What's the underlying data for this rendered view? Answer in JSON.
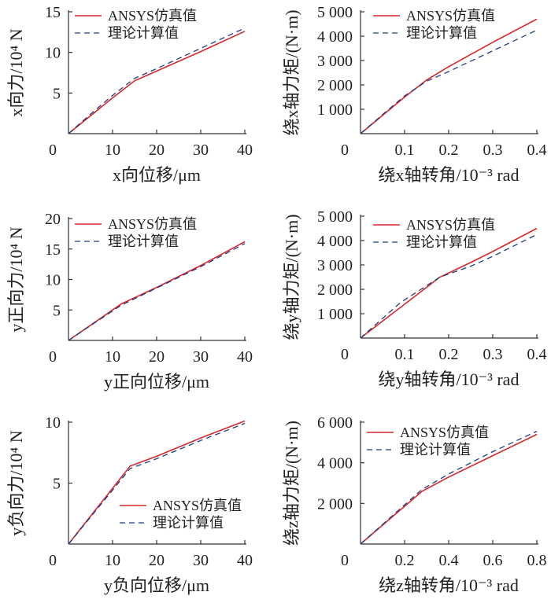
{
  "colors": {
    "sim": "#d62728",
    "theory": "#1f3c88",
    "axis": "#333333"
  },
  "chart_data": [
    {
      "type": "line",
      "xlabel": "x向位移/μm",
      "ylabel": "x向力/10⁴ N",
      "xlim": [
        0,
        40
      ],
      "ylim": [
        0,
        15
      ],
      "xticks": [
        0,
        10,
        20,
        30,
        40
      ],
      "xtick_labels": [
        "0",
        "10",
        "20",
        "30",
        "40"
      ],
      "yticks": [
        5,
        10,
        15
      ],
      "ytick_labels": [
        "5",
        "10",
        "15"
      ],
      "legend": "top-left",
      "series": [
        {
          "name": "ANSYS仿真值",
          "style": "solid",
          "x": [
            0,
            5,
            10,
            15,
            20,
            30,
            40
          ],
          "y": [
            0,
            2.2,
            4.4,
            6.5,
            7.7,
            10.1,
            12.6
          ]
        },
        {
          "name": "理论计算值",
          "style": "dashed",
          "x": [
            0,
            5,
            10,
            15,
            20,
            30,
            40
          ],
          "y": [
            0,
            2.4,
            4.7,
            6.8,
            8.0,
            10.5,
            13.0
          ]
        }
      ]
    },
    {
      "type": "line",
      "xlabel": "绕x轴转角/10⁻³ rad",
      "ylabel": "绕x轴力矩/(N·m)",
      "xlim": [
        0,
        0.4
      ],
      "ylim": [
        0,
        5000
      ],
      "xticks": [
        0,
        0.1,
        0.2,
        0.3,
        0.4
      ],
      "xtick_labels": [
        "0",
        "0.1",
        "0.2",
        "0.3",
        "0.4"
      ],
      "yticks": [
        1000,
        2000,
        3000,
        4000,
        5000
      ],
      "ytick_labels": [
        "1 000",
        "2 000",
        "3 000",
        "4 000",
        "5 000"
      ],
      "legend": "top-left",
      "series": [
        {
          "name": "ANSYS仿真值",
          "style": "solid",
          "x": [
            0,
            0.05,
            0.1,
            0.15,
            0.2,
            0.3,
            0.4
          ],
          "y": [
            0,
            750,
            1500,
            2200,
            2750,
            3750,
            4700
          ]
        },
        {
          "name": "理论计算值",
          "style": "dashed",
          "x": [
            0,
            0.05,
            0.1,
            0.15,
            0.2,
            0.3,
            0.4
          ],
          "y": [
            0,
            780,
            1550,
            2150,
            2550,
            3400,
            4250
          ]
        }
      ]
    },
    {
      "type": "line",
      "xlabel": "y正向位移/μm",
      "ylabel": "y正向力/10⁴ N",
      "xlim": [
        0,
        40
      ],
      "ylim": [
        0,
        20
      ],
      "xticks": [
        0,
        10,
        20,
        30,
        40
      ],
      "xtick_labels": [
        "0",
        "10",
        "20",
        "30",
        "40"
      ],
      "yticks": [
        5,
        10,
        15,
        20
      ],
      "ytick_labels": [
        "5",
        "10",
        "15",
        "20"
      ],
      "legend": "top-left",
      "series": [
        {
          "name": "ANSYS仿真值",
          "style": "solid",
          "x": [
            0,
            6,
            12,
            20,
            30,
            40
          ],
          "y": [
            0,
            3.0,
            6.0,
            8.7,
            12.3,
            16.2
          ]
        },
        {
          "name": "理论计算值",
          "style": "dashed",
          "x": [
            0,
            6,
            12,
            20,
            30,
            40
          ],
          "y": [
            0,
            2.9,
            5.8,
            8.6,
            12.1,
            15.9
          ]
        }
      ]
    },
    {
      "type": "line",
      "xlabel": "绕y轴转角/10⁻³ rad",
      "ylabel": "绕y轴力矩/(N·m)",
      "xlim": [
        0,
        0.4
      ],
      "ylim": [
        0,
        5000
      ],
      "xticks": [
        0,
        0.1,
        0.2,
        0.3,
        0.4
      ],
      "xtick_labels": [
        "0",
        "0.1",
        "0.2",
        "0.3",
        "0.4"
      ],
      "yticks": [
        1000,
        2000,
        3000,
        4000,
        5000
      ],
      "ytick_labels": [
        "1 000",
        "2 000",
        "3 000",
        "4 000",
        "5 000"
      ],
      "legend": "top-left",
      "series": [
        {
          "name": "ANSYS仿真值",
          "style": "solid",
          "x": [
            0,
            0.09,
            0.18,
            0.25,
            0.3,
            0.4
          ],
          "y": [
            0,
            1250,
            2500,
            3100,
            3550,
            4500
          ]
        },
        {
          "name": "理论计算值",
          "style": "dashed",
          "x": [
            0,
            0.09,
            0.18,
            0.25,
            0.3,
            0.4
          ],
          "y": [
            0,
            1450,
            2500,
            2950,
            3350,
            4250
          ]
        }
      ]
    },
    {
      "type": "line",
      "xlabel": "y负向位移/μm",
      "ylabel": "y负向力/10⁴ N",
      "xlim": [
        0,
        40
      ],
      "ylim": [
        0,
        10
      ],
      "xticks": [
        0,
        10,
        20,
        30,
        40
      ],
      "xtick_labels": [
        "0",
        "10",
        "20",
        "30",
        "40"
      ],
      "yticks": [
        5,
        10
      ],
      "ytick_labels": [
        "5",
        "10"
      ],
      "legend": "bottom-right",
      "series": [
        {
          "name": "ANSYS仿真值",
          "style": "solid",
          "x": [
            0,
            7,
            14,
            20,
            30,
            40
          ],
          "y": [
            0,
            3.2,
            6.4,
            7.2,
            8.7,
            10.1
          ]
        },
        {
          "name": "理论计算值",
          "style": "dashed",
          "x": [
            0,
            7,
            14,
            20,
            30,
            40
          ],
          "y": [
            0,
            3.1,
            6.2,
            7.0,
            8.5,
            9.9
          ]
        }
      ]
    },
    {
      "type": "line",
      "xlabel": "绕z轴转角/10⁻³ rad",
      "ylabel": "绕z轴力矩/(N·m)",
      "xlim": [
        0,
        0.8
      ],
      "ylim": [
        0,
        6000
      ],
      "xticks": [
        0,
        0.2,
        0.4,
        0.6,
        0.8
      ],
      "xtick_labels": [
        "0",
        "0.2",
        "0.4",
        "0.6",
        "0.8"
      ],
      "yticks": [
        2000,
        4000,
        6000
      ],
      "ytick_labels": [
        "2 000",
        "4 000",
        "6 000"
      ],
      "legend": "top-left",
      "series": [
        {
          "name": "ANSYS仿真值",
          "style": "solid",
          "x": [
            0,
            0.14,
            0.28,
            0.4,
            0.6,
            0.8
          ],
          "y": [
            0,
            1300,
            2600,
            3300,
            4350,
            5400
          ]
        },
        {
          "name": "理论计算值",
          "style": "dashed",
          "x": [
            0,
            0.14,
            0.28,
            0.4,
            0.6,
            0.8
          ],
          "y": [
            0,
            1350,
            2700,
            3450,
            4550,
            5550
          ]
        }
      ]
    }
  ]
}
